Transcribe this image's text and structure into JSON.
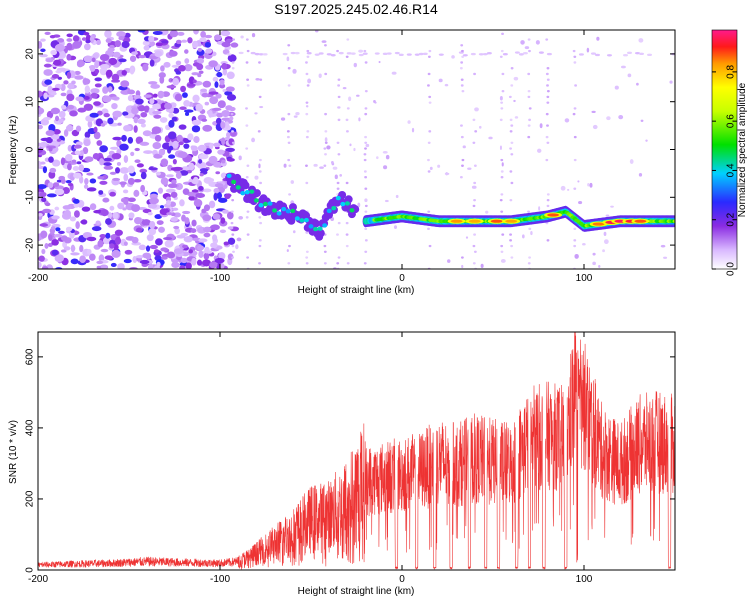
{
  "chart_data": [
    {
      "type": "heatmap",
      "title": "S197.2025.245.02.46.R14",
      "xlabel": "Height of straight line (km)",
      "ylabel": "Frequency (Hz)",
      "xlim": [
        -200,
        150
      ],
      "ylim": [
        -25,
        25
      ],
      "xticks": [
        -200,
        -100,
        0,
        100
      ],
      "yticks": [
        -20,
        -10,
        0,
        10,
        20
      ],
      "colorbar": {
        "label": "Normalized spectral amplitude",
        "range": [
          0.0,
          0.97
        ],
        "ticks": [
          0.0,
          0.2,
          0.4,
          0.6,
          0.8
        ]
      },
      "features": [
        {
          "name": "noise-region",
          "x_range": [
            -200,
            -92
          ],
          "freq_range": [
            -25,
            25
          ],
          "amplitude": 0.15
        },
        {
          "name": "broken-trace",
          "x": [
            -95,
            -85,
            -75,
            -65,
            -55,
            -45,
            -35,
            -25
          ],
          "freq": [
            -6,
            -9,
            -12,
            -13,
            -14,
            -17,
            -10,
            -13
          ],
          "amplitude": 0.3
        },
        {
          "name": "main-signal",
          "x": [
            -20,
            0,
            20,
            40,
            60,
            80,
            90,
            100,
            120,
            150
          ],
          "freq": [
            -15,
            -14,
            -15,
            -15,
            -15,
            -14,
            -13,
            -16,
            -15,
            -15
          ],
          "amplitude": 0.9
        },
        {
          "name": "flat-band",
          "x_range": [
            -95,
            150
          ],
          "freq": 20,
          "amplitude": 0.05
        }
      ]
    },
    {
      "type": "line",
      "xlabel": "Height of straight line (km)",
      "ylabel": "SNR (10 * v/v)",
      "xlim": [
        -200,
        150
      ],
      "ylim": [
        0,
        670
      ],
      "xticks": [
        -200,
        -100,
        0,
        100
      ],
      "yticks": [
        0,
        200,
        400,
        600
      ],
      "series": [
        {
          "name": "SNR",
          "color": "#ee3333",
          "x": [
            -200,
            -180,
            -160,
            -140,
            -120,
            -100,
            -90,
            -80,
            -70,
            -60,
            -50,
            -40,
            -30,
            -20,
            -10,
            0,
            10,
            20,
            30,
            40,
            50,
            60,
            70,
            80,
            90,
            95,
            100,
            110,
            120,
            130,
            140,
            150
          ],
          "y": [
            15,
            18,
            20,
            25,
            22,
            20,
            25,
            50,
            80,
            110,
            150,
            160,
            200,
            270,
            280,
            290,
            300,
            330,
            320,
            340,
            330,
            320,
            400,
            410,
            400,
            550,
            500,
            360,
            320,
            380,
            390,
            380
          ]
        }
      ]
    }
  ]
}
